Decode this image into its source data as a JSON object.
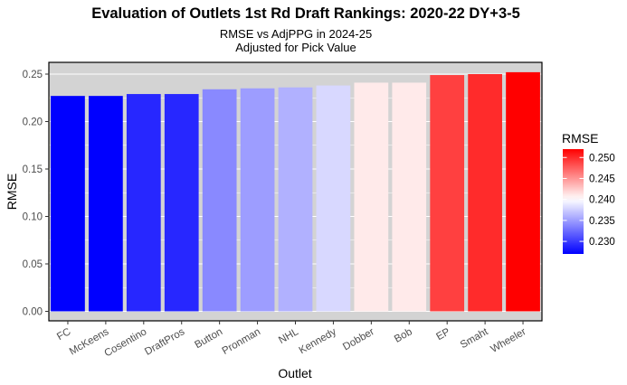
{
  "chart_data": {
    "type": "bar",
    "title": "Evaluation of Outlets 1st Rd Draft Rankings: 2020-22 DY+3-5",
    "subtitle_line1": "RMSE vs AdjPPG in 2024-25",
    "subtitle_line2": "Adjusted for Pick Value",
    "xlabel": "Outlet",
    "ylabel": "RMSE",
    "categories": [
      "FC",
      "McKeens",
      "Cosentino",
      "DraftPros",
      "Button",
      "Pronman",
      "NHL",
      "Kennedy",
      "Dobber",
      "Bob",
      "EP",
      "Smaht",
      "Wheeler"
    ],
    "values": [
      0.227,
      0.227,
      0.229,
      0.229,
      0.234,
      0.235,
      0.236,
      0.238,
      0.241,
      0.241,
      0.249,
      0.25,
      0.252
    ],
    "ylim": [
      0,
      0.26
    ],
    "yticks": [
      0.0,
      0.05,
      0.1,
      0.15,
      0.2,
      0.25
    ],
    "ytick_labels": [
      "0.00",
      "0.05",
      "0.10",
      "0.15",
      "0.20",
      "0.25"
    ],
    "grid": true,
    "legend": {
      "title": "RMSE",
      "placement": "right",
      "ticks": [
        0.23,
        0.235,
        0.24,
        0.245,
        0.25
      ],
      "tick_labels": [
        "0.230",
        "0.235",
        "0.240",
        "0.245",
        "0.250"
      ],
      "range": [
        0.227,
        0.252
      ],
      "midpoint": 0.24
    },
    "colors": {
      "low": "#0000ff",
      "mid": "#ffffff",
      "high": "#ff0000",
      "panel_background": "#d3d3d3"
    }
  }
}
